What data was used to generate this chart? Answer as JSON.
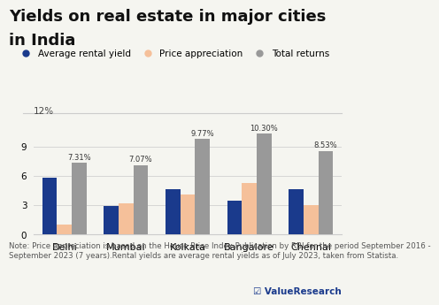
{
  "title_line1": "Yields on real estate in major cities",
  "title_line2": "in India",
  "cities": [
    "Delhi",
    "Mumbai",
    "Kolkata",
    "Bangalore",
    "Chennai"
  ],
  "rental_yield": [
    5.8,
    2.9,
    4.6,
    3.5,
    4.6
  ],
  "price_appreciation": [
    1.0,
    3.2,
    4.1,
    5.3,
    3.0
  ],
  "total_returns": [
    7.31,
    7.07,
    9.77,
    10.3,
    8.53
  ],
  "total_labels": [
    "7.31%",
    "7.07%",
    "9.77%",
    "10.30%",
    "8.53%"
  ],
  "color_rental": "#1a3a8c",
  "color_price": "#f5c09a",
  "color_total": "#999999",
  "ylim": [
    0,
    12
  ],
  "yticks": [
    0,
    3,
    6,
    9
  ],
  "ylabel_text": "12%",
  "legend_labels": [
    "Average rental yield",
    "Price appreciation",
    "Total returns"
  ],
  "note": "Note: Price appreciation is based on the House Price Index Publication by RBI for the period September 2016 -\nSeptember 2023 (7 years).Rental yields are average rental yields as of July 2023, taken from Statista.",
  "watermark": "☑ ValueResearch",
  "bg_color": "#f5f5f0",
  "title_fontsize": 13,
  "legend_fontsize": 7.5,
  "note_fontsize": 6.2,
  "bar_width": 0.24
}
